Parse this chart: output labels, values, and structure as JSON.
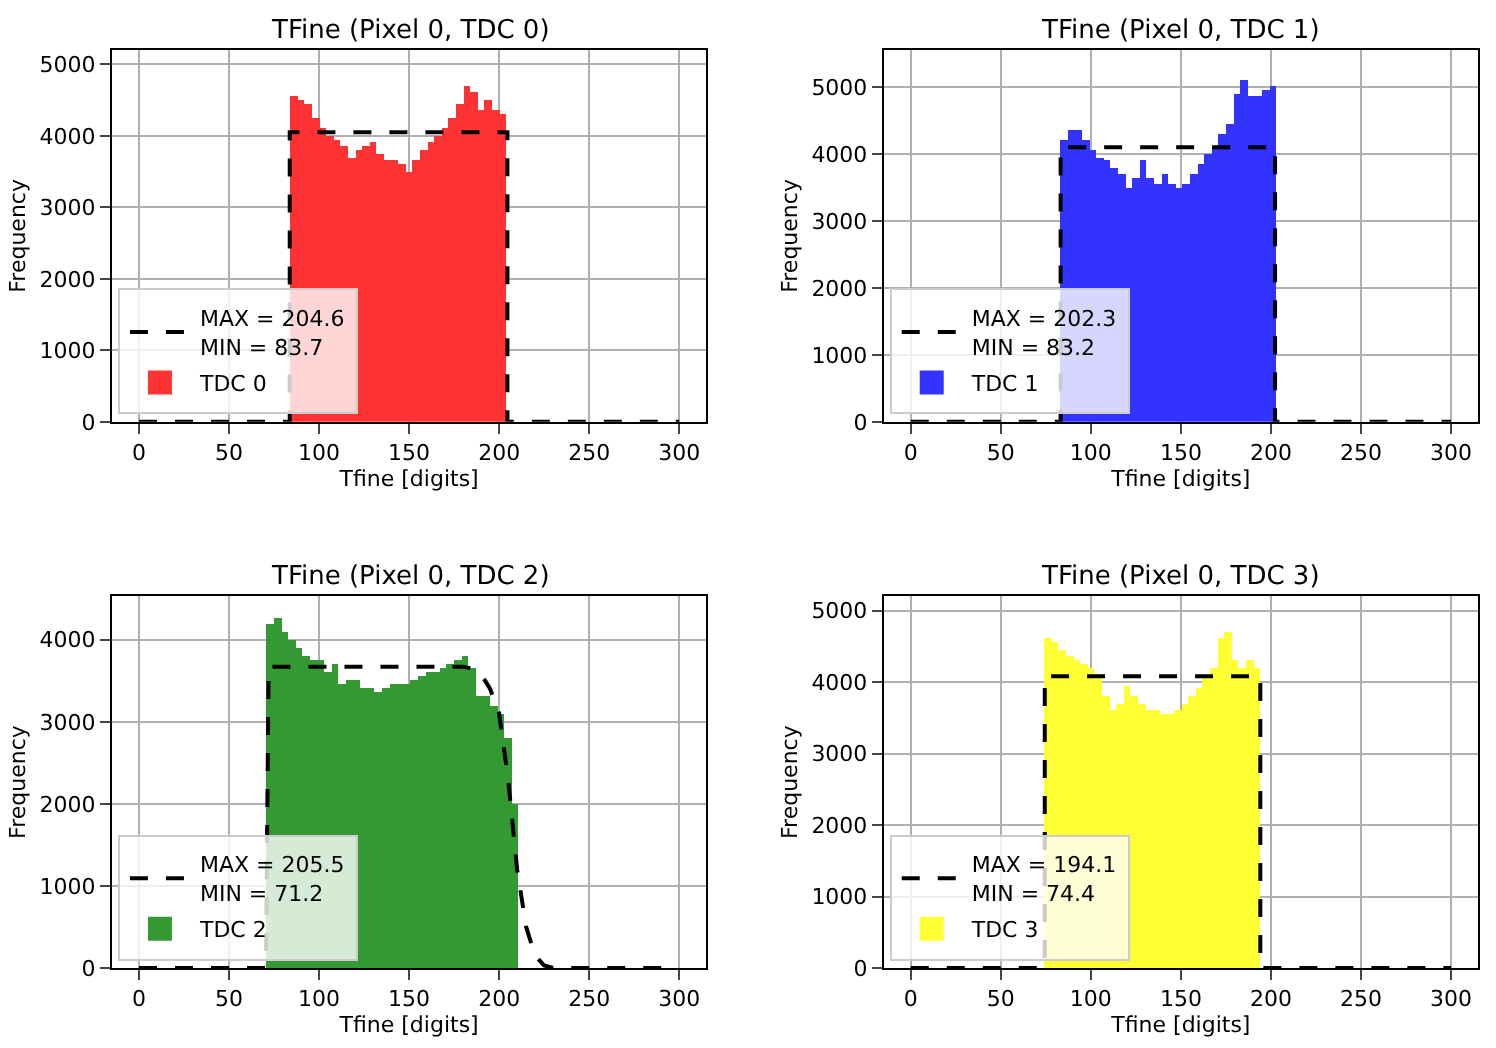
{
  "chart_data": [
    {
      "type": "histogram",
      "title": "TFine (Pixel 0, TDC 0)",
      "xlabel": "Tfine [digits]",
      "ylabel": "Frequency",
      "xlim": [
        -15,
        315
      ],
      "xticks": [
        0,
        50,
        100,
        150,
        200,
        250,
        300
      ],
      "ylim": [
        0,
        5200
      ],
      "yticks": [
        0,
        1000,
        2000,
        3000,
        4000,
        5000
      ],
      "grid": true,
      "legend": "bottom left",
      "series": [
        {
          "type": "line",
          "name": "MAX = 204.6\nMIN = 83.7",
          "color": "#000000",
          "line_style": "dashed",
          "x": [
            0,
            83.7,
            83.7,
            204.6,
            204.6,
            300
          ],
          "values": [
            0,
            0,
            4050,
            4050,
            0,
            0
          ]
        },
        {
          "name": "TDC 0",
          "color": "#ff3333",
          "bins": [
            84,
            88,
            92,
            96,
            100,
            104,
            108,
            112,
            116,
            120,
            124,
            128,
            132,
            136,
            140,
            144,
            148,
            152,
            156,
            160,
            164,
            168,
            172,
            176,
            180,
            184,
            188,
            192,
            196,
            200,
            204
          ],
          "values": [
            4550,
            4500,
            4450,
            4250,
            4100,
            4000,
            3950,
            3850,
            3700,
            3800,
            3850,
            3900,
            3750,
            3650,
            3650,
            3600,
            3500,
            3650,
            3800,
            3900,
            4000,
            4100,
            4250,
            4450,
            4700,
            4600,
            4350,
            4500,
            4350,
            4300
          ]
        }
      ]
    },
    {
      "type": "histogram",
      "title": "TFine (Pixel 0, TDC 1)",
      "xlabel": "Tfine [digits]",
      "ylabel": "Frequency",
      "xlim": [
        -15,
        315
      ],
      "xticks": [
        0,
        50,
        100,
        150,
        200,
        250,
        300
      ],
      "ylim": [
        0,
        5550
      ],
      "yticks": [
        0,
        1000,
        2000,
        3000,
        4000,
        5000
      ],
      "grid": true,
      "legend": "bottom left",
      "series": [
        {
          "type": "line",
          "name": "MAX = 202.3\nMIN = 83.2",
          "color": "#000000",
          "line_style": "dashed",
          "x": [
            0,
            83.2,
            83.2,
            202.3,
            202.3,
            300
          ],
          "values": [
            0,
            0,
            4100,
            4100,
            0,
            0
          ]
        },
        {
          "name": "TDC 1",
          "color": "#3333ff",
          "bins": [
            83,
            87,
            91,
            95,
            99,
            103,
            107,
            111,
            115,
            119,
            123,
            127,
            131,
            135,
            139,
            143,
            147,
            151,
            155,
            159,
            163,
            167,
            171,
            175,
            179,
            183,
            187,
            191,
            195,
            199,
            203
          ],
          "values": [
            4200,
            4350,
            4350,
            4200,
            4050,
            3950,
            3900,
            3800,
            3700,
            3500,
            3650,
            3900,
            3650,
            3550,
            3700,
            3550,
            3500,
            3550,
            3700,
            3850,
            4000,
            4100,
            4300,
            4450,
            4900,
            5100,
            4850,
            4850,
            4950,
            5000
          ]
        }
      ]
    },
    {
      "type": "histogram",
      "title": "TFine (Pixel 0, TDC 2)",
      "xlabel": "Tfine [digits]",
      "ylabel": "Frequency",
      "xlim": [
        -15,
        315
      ],
      "xticks": [
        0,
        50,
        100,
        150,
        200,
        250,
        300
      ],
      "ylim": [
        0,
        4530
      ],
      "yticks": [
        0,
        1000,
        2000,
        3000,
        4000
      ],
      "grid": true,
      "legend": "bottom left",
      "series": [
        {
          "type": "line",
          "name": "MAX = 205.5\nMIN = 71.2",
          "color": "#000000",
          "line_style": "dashed",
          "x": [
            0,
            70.5,
            71.2,
            72,
            180,
            185,
            190,
            195,
            200,
            205,
            210,
            215,
            220,
            225,
            230,
            300
          ],
          "values": [
            0,
            0,
            1800,
            3670,
            3670,
            3650,
            3580,
            3400,
            3100,
            2300,
            1200,
            500,
            150,
            30,
            0,
            0
          ]
        },
        {
          "name": "TDC 2",
          "color": "#339933",
          "bins": [
            71,
            75,
            79,
            83,
            87,
            91,
            95,
            99,
            103,
            107,
            111,
            115,
            119,
            123,
            127,
            131,
            135,
            139,
            143,
            147,
            151,
            155,
            159,
            163,
            167,
            171,
            175,
            179,
            183,
            187,
            191,
            195,
            199,
            203,
            207,
            211
          ],
          "values": [
            4200,
            4250,
            4100,
            4000,
            3900,
            3800,
            3750,
            3750,
            3600,
            3700,
            3450,
            3500,
            3500,
            3400,
            3400,
            3350,
            3400,
            3450,
            3450,
            3450,
            3500,
            3550,
            3600,
            3600,
            3650,
            3700,
            3750,
            3800,
            3650,
            3300,
            3300,
            3200,
            3100,
            2800,
            2000
          ]
        }
      ]
    },
    {
      "type": "histogram",
      "title": "TFine (Pixel 0, TDC 3)",
      "xlabel": "Tfine [digits]",
      "ylabel": "Frequency",
      "xlim": [
        -15,
        315
      ],
      "xticks": [
        0,
        50,
        100,
        150,
        200,
        250,
        300
      ],
      "ylim": [
        0,
        5200
      ],
      "yticks": [
        0,
        1000,
        2000,
        3000,
        4000,
        5000
      ],
      "grid": true,
      "legend": "bottom left",
      "series": [
        {
          "type": "line",
          "name": "MAX = 194.1\nMIN = 74.4",
          "color": "#000000",
          "line_style": "dashed",
          "x": [
            0,
            74.4,
            74.4,
            194.1,
            194.1,
            300
          ],
          "values": [
            0,
            0,
            4080,
            4080,
            0,
            0
          ]
        },
        {
          "name": "TDC 3",
          "color": "#ffff33",
          "bins": [
            74,
            78,
            82,
            86,
            90,
            94,
            98,
            102,
            106,
            110,
            114,
            118,
            122,
            126,
            130,
            134,
            138,
            142,
            146,
            150,
            154,
            158,
            162,
            166,
            170,
            174,
            178,
            182,
            186,
            190,
            194
          ],
          "values": [
            4600,
            4550,
            4450,
            4350,
            4300,
            4250,
            4200,
            4100,
            3800,
            3600,
            3700,
            3950,
            3800,
            3700,
            3600,
            3600,
            3550,
            3550,
            3600,
            3700,
            3800,
            3900,
            4050,
            4200,
            4600,
            4700,
            4300,
            4200,
            4300,
            4200
          ]
        }
      ]
    }
  ]
}
